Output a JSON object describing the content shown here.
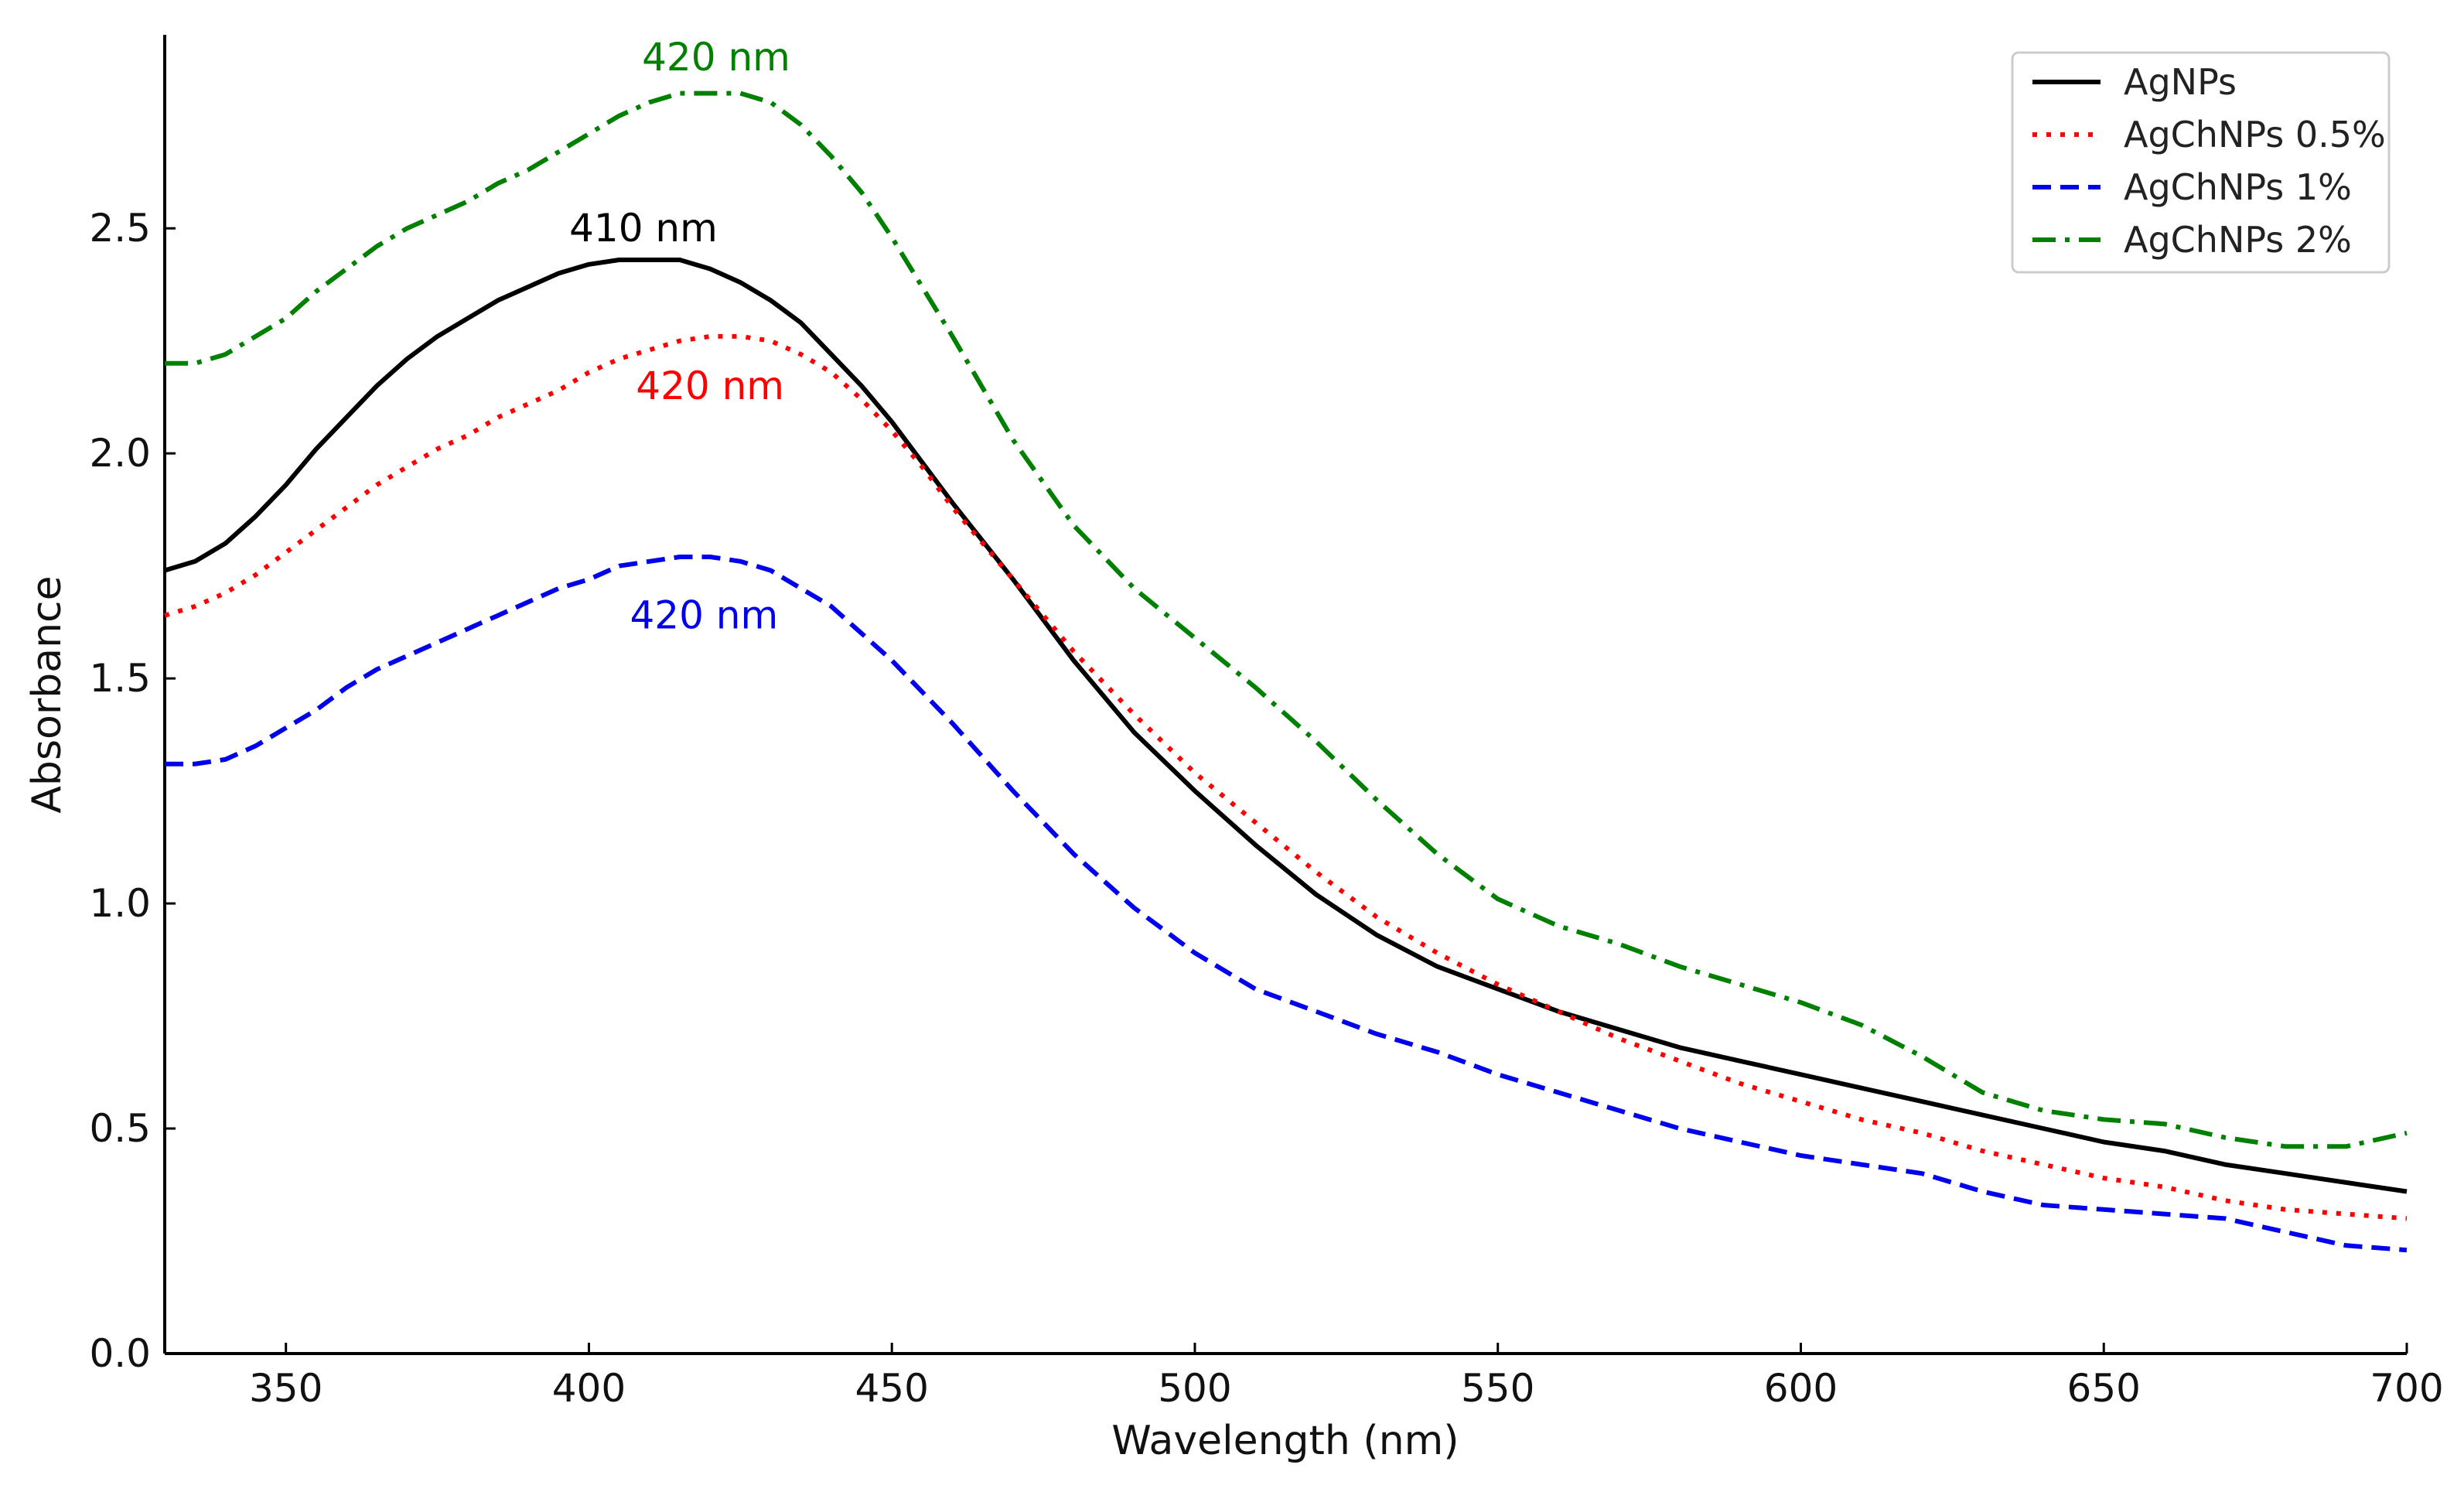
{
  "chart_data": {
    "type": "line",
    "title": "",
    "xlabel": "Wavelength (nm)",
    "ylabel": "Absorbance",
    "xlim": [
      330,
      700
    ],
    "ylim": [
      0,
      2.93
    ],
    "xticks": [
      350,
      400,
      450,
      500,
      550,
      600,
      650,
      700
    ],
    "yticks": [
      0.0,
      0.5,
      1.0,
      1.5,
      2.0,
      2.5
    ],
    "xtick_labels": [
      "350",
      "400",
      "450",
      "500",
      "550",
      "600",
      "650",
      "700"
    ],
    "ytick_labels": [
      "0.0",
      "0.5",
      "1.0",
      "1.5",
      "2.0",
      "2.5"
    ],
    "grid": false,
    "legend_position": "top-right",
    "series": [
      {
        "name": "AgNPs",
        "color": "#000000",
        "style": "solid",
        "x": [
          330,
          335,
          340,
          345,
          350,
          355,
          360,
          365,
          370,
          375,
          380,
          385,
          390,
          395,
          400,
          405,
          410,
          415,
          420,
          425,
          430,
          435,
          440,
          445,
          450,
          455,
          460,
          470,
          480,
          490,
          500,
          510,
          520,
          530,
          540,
          550,
          560,
          570,
          580,
          590,
          600,
          610,
          620,
          630,
          640,
          650,
          660,
          670,
          680,
          690,
          700
        ],
        "y": [
          1.74,
          1.76,
          1.8,
          1.86,
          1.93,
          2.01,
          2.08,
          2.15,
          2.21,
          2.26,
          2.3,
          2.34,
          2.37,
          2.4,
          2.42,
          2.43,
          2.43,
          2.43,
          2.41,
          2.38,
          2.34,
          2.29,
          2.22,
          2.15,
          2.07,
          1.98,
          1.89,
          1.72,
          1.54,
          1.38,
          1.25,
          1.13,
          1.02,
          0.93,
          0.86,
          0.81,
          0.76,
          0.72,
          0.68,
          0.65,
          0.62,
          0.59,
          0.56,
          0.53,
          0.5,
          0.47,
          0.45,
          0.42,
          0.4,
          0.38,
          0.36
        ]
      },
      {
        "name": "AgChNPs 0.5%",
        "color": "#ff0000",
        "style": "dotted",
        "x": [
          330,
          335,
          340,
          345,
          350,
          355,
          360,
          365,
          370,
          375,
          380,
          385,
          390,
          395,
          400,
          405,
          410,
          415,
          420,
          425,
          430,
          435,
          440,
          445,
          450,
          455,
          460,
          470,
          480,
          490,
          500,
          510,
          520,
          530,
          540,
          550,
          560,
          570,
          580,
          590,
          600,
          610,
          620,
          630,
          640,
          650,
          660,
          670,
          680,
          690,
          700
        ],
        "y": [
          1.64,
          1.66,
          1.69,
          1.73,
          1.78,
          1.83,
          1.88,
          1.93,
          1.97,
          2.01,
          2.04,
          2.08,
          2.11,
          2.14,
          2.18,
          2.21,
          2.23,
          2.25,
          2.26,
          2.26,
          2.25,
          2.22,
          2.18,
          2.12,
          2.05,
          1.97,
          1.88,
          1.72,
          1.56,
          1.42,
          1.29,
          1.18,
          1.07,
          0.97,
          0.89,
          0.82,
          0.76,
          0.7,
          0.65,
          0.6,
          0.56,
          0.52,
          0.49,
          0.45,
          0.42,
          0.39,
          0.37,
          0.34,
          0.32,
          0.31,
          0.3
        ]
      },
      {
        "name": "AgChNPs 1%",
        "color": "#0000ee",
        "style": "dashed",
        "x": [
          330,
          335,
          340,
          345,
          350,
          355,
          360,
          365,
          370,
          375,
          380,
          385,
          390,
          395,
          400,
          405,
          410,
          415,
          420,
          425,
          430,
          435,
          440,
          445,
          450,
          455,
          460,
          470,
          480,
          490,
          500,
          510,
          520,
          530,
          540,
          550,
          560,
          570,
          580,
          590,
          600,
          610,
          620,
          630,
          640,
          650,
          660,
          670,
          680,
          690,
          700
        ],
        "y": [
          1.31,
          1.31,
          1.32,
          1.35,
          1.39,
          1.43,
          1.48,
          1.52,
          1.55,
          1.58,
          1.61,
          1.64,
          1.67,
          1.7,
          1.72,
          1.75,
          1.76,
          1.77,
          1.77,
          1.76,
          1.74,
          1.7,
          1.66,
          1.6,
          1.54,
          1.47,
          1.4,
          1.25,
          1.11,
          0.99,
          0.89,
          0.81,
          0.76,
          0.71,
          0.67,
          0.62,
          0.58,
          0.54,
          0.5,
          0.47,
          0.44,
          0.42,
          0.4,
          0.36,
          0.33,
          0.32,
          0.31,
          0.3,
          0.27,
          0.24,
          0.23
        ]
      },
      {
        "name": "AgChNPs 2%",
        "color": "#008000",
        "style": "dashdot",
        "x": [
          330,
          335,
          340,
          345,
          350,
          355,
          360,
          365,
          370,
          375,
          380,
          385,
          390,
          395,
          400,
          405,
          410,
          415,
          420,
          425,
          430,
          435,
          440,
          445,
          450,
          455,
          460,
          470,
          480,
          490,
          500,
          510,
          520,
          530,
          540,
          550,
          560,
          570,
          580,
          590,
          600,
          610,
          620,
          630,
          640,
          650,
          660,
          670,
          680,
          690,
          700
        ],
        "y": [
          2.2,
          2.2,
          2.22,
          2.26,
          2.3,
          2.36,
          2.41,
          2.46,
          2.5,
          2.53,
          2.56,
          2.6,
          2.63,
          2.67,
          2.71,
          2.75,
          2.78,
          2.8,
          2.8,
          2.8,
          2.78,
          2.73,
          2.66,
          2.58,
          2.48,
          2.37,
          2.26,
          2.03,
          1.84,
          1.7,
          1.59,
          1.48,
          1.36,
          1.23,
          1.11,
          1.01,
          0.95,
          0.91,
          0.86,
          0.82,
          0.78,
          0.73,
          0.66,
          0.58,
          0.54,
          0.52,
          0.51,
          0.48,
          0.46,
          0.46,
          0.49
        ]
      }
    ],
    "annotations": [
      {
        "text": "420 nm",
        "x": 421,
        "y": 2.88,
        "color": "#008000"
      },
      {
        "text": "410 nm",
        "x": 409,
        "y": 2.5,
        "color": "#000000"
      },
      {
        "text": "420 nm",
        "x": 420,
        "y": 2.15,
        "color": "#ff0000"
      },
      {
        "text": "420 nm",
        "x": 419,
        "y": 1.64,
        "color": "#0000ee"
      }
    ]
  }
}
